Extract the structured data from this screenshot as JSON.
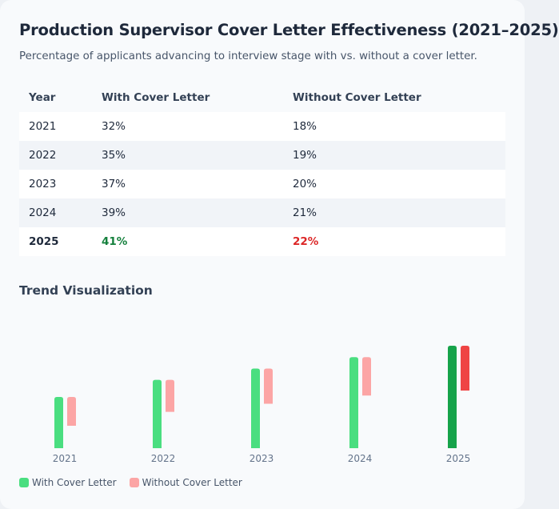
{
  "title": "Production Supervisor Cover Letter Effectiveness (2021–2025)",
  "subtitle": "Percentage of applicants advancing to interview stage with vs. without a cover letter.",
  "table": {
    "headers": [
      "Year",
      "With Cover Letter",
      "Without Cover Letter"
    ],
    "rows": [
      [
        "2021",
        "32%",
        "18%"
      ],
      [
        "2022",
        "35%",
        "19%"
      ],
      [
        "2023",
        "37%",
        "20%"
      ],
      [
        "2024",
        "39%",
        "21%"
      ],
      [
        "2025",
        "41%",
        "22%"
      ]
    ]
  },
  "section_title": "Trend Visualization",
  "chart_data": {
    "type": "bar",
    "categories": [
      "2021",
      "2022",
      "2023",
      "2024",
      "2025"
    ],
    "series": [
      {
        "name": "With Cover Letter",
        "values": [
          32,
          35,
          37,
          39,
          41
        ],
        "color": "#4ade80",
        "highlight_color": "#16a34a"
      },
      {
        "name": "Without Cover Letter",
        "values": [
          18,
          19,
          20,
          21,
          22
        ],
        "color": "#fca5a5",
        "highlight_color": "#ef4444"
      }
    ],
    "highlight_category": "2025",
    "grid": false,
    "legend": "bottom-left"
  }
}
